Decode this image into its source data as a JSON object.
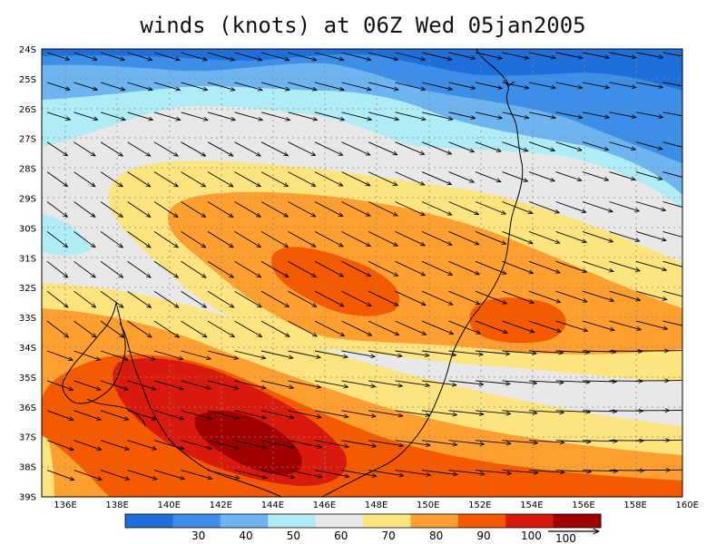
{
  "title": "winds (knots) at 06Z Wed 05jan2005",
  "lat_labels": [
    "24S",
    "25S",
    "26S",
    "27S",
    "28S",
    "29S",
    "30S",
    "31S",
    "32S",
    "33S",
    "34S",
    "35S",
    "36S",
    "37S",
    "38S",
    "39S"
  ],
  "lon_labels": [
    "136E",
    "138E",
    "140E",
    "142E",
    "144E",
    "146E",
    "148E",
    "150E",
    "152E",
    "154E",
    "156E",
    "158E",
    "160E"
  ],
  "colorbar": {
    "colors": [
      "#1e6fd9",
      "#3d8ee8",
      "#6db4f0",
      "#b0ecf6",
      "#e8e8e8",
      "#fee47f",
      "#fe9f30",
      "#f55a00",
      "#d8190c",
      "#a00000"
    ],
    "labels": [
      "30",
      "40",
      "50",
      "60",
      "70",
      "80",
      "90",
      "100"
    ],
    "vector_ref_label": "100"
  },
  "colors": {
    "coast": "#000000",
    "arrow": "#000000",
    "grid": "#888888"
  }
}
